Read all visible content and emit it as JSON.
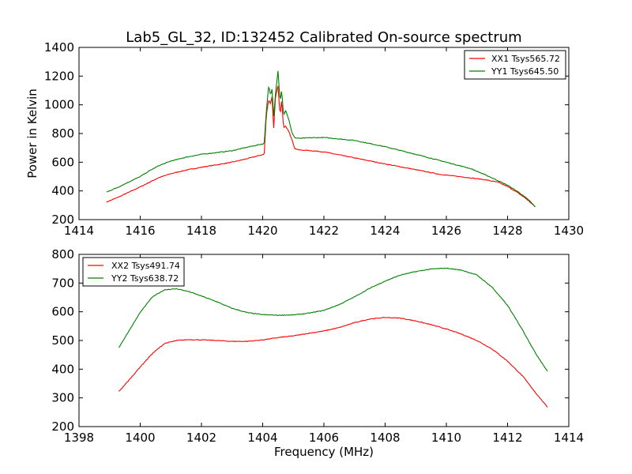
{
  "figure": {
    "title": "Lab5_GL_32, ID:132452 Calibrated On-source spectrum",
    "colors": {
      "red": "#ff0000",
      "green": "#008000"
    }
  },
  "chart_data": [
    {
      "type": "line",
      "title": "Lab5_GL_32, ID:132452 Calibrated On-source spectrum",
      "xlabel": "",
      "ylabel": "Power in Kelvin",
      "xlim": [
        1414,
        1430
      ],
      "ylim": [
        200,
        1400
      ],
      "xticks": [
        1414,
        1416,
        1418,
        1420,
        1422,
        1424,
        1426,
        1428,
        1430
      ],
      "yticks": [
        200,
        400,
        600,
        800,
        1000,
        1200,
        1400
      ],
      "grid": false,
      "legend": "top-right",
      "series": [
        {
          "name": "XX1 Tsys565.72",
          "color": "#ff0000",
          "points": [
            [
              1414.9,
              322
            ],
            [
              1415.3,
              358
            ],
            [
              1415.7,
              398
            ],
            [
              1416.0,
              428
            ],
            [
              1416.3,
              460
            ],
            [
              1416.6,
              492
            ],
            [
              1417.0,
              520
            ],
            [
              1417.5,
              545
            ],
            [
              1418.0,
              565
            ],
            [
              1418.5,
              582
            ],
            [
              1419.0,
              600
            ],
            [
              1419.5,
              625
            ],
            [
              1419.95,
              650
            ],
            [
              1420.05,
              655
            ],
            [
              1420.12,
              930
            ],
            [
              1420.2,
              1040
            ],
            [
              1420.26,
              1000
            ],
            [
              1420.3,
              1070
            ],
            [
              1420.36,
              840
            ],
            [
              1420.42,
              1060
            ],
            [
              1420.5,
              1130
            ],
            [
              1420.57,
              920
            ],
            [
              1420.62,
              1040
            ],
            [
              1420.68,
              840
            ],
            [
              1420.75,
              850
            ],
            [
              1420.85,
              820
            ],
            [
              1420.95,
              760
            ],
            [
              1421.05,
              695
            ],
            [
              1421.2,
              685
            ],
            [
              1421.5,
              682
            ],
            [
              1422.0,
              672
            ],
            [
              1423.0,
              630
            ],
            [
              1424.0,
              588
            ],
            [
              1425.0,
              548
            ],
            [
              1425.8,
              515
            ],
            [
              1426.5,
              498
            ],
            [
              1427.2,
              480
            ],
            [
              1427.7,
              460
            ],
            [
              1428.0,
              430
            ],
            [
              1428.3,
              392
            ],
            [
              1428.6,
              347
            ],
            [
              1428.9,
              290
            ]
          ]
        },
        {
          "name": "YY1 Tsys645.50",
          "color": "#008000",
          "points": [
            [
              1414.9,
              392
            ],
            [
              1415.3,
              428
            ],
            [
              1415.7,
              470
            ],
            [
              1416.0,
              500
            ],
            [
              1416.3,
              540
            ],
            [
              1416.6,
              575
            ],
            [
              1417.0,
              608
            ],
            [
              1417.5,
              635
            ],
            [
              1418.0,
              655
            ],
            [
              1418.5,
              667
            ],
            [
              1419.0,
              680
            ],
            [
              1419.5,
              705
            ],
            [
              1419.95,
              725
            ],
            [
              1420.05,
              730
            ],
            [
              1420.12,
              960
            ],
            [
              1420.2,
              1140
            ],
            [
              1420.26,
              1060
            ],
            [
              1420.3,
              1120
            ],
            [
              1420.36,
              920
            ],
            [
              1420.42,
              1080
            ],
            [
              1420.5,
              1235
            ],
            [
              1420.57,
              1020
            ],
            [
              1420.62,
              1110
            ],
            [
              1420.68,
              930
            ],
            [
              1420.75,
              960
            ],
            [
              1420.85,
              900
            ],
            [
              1420.95,
              810
            ],
            [
              1421.05,
              770
            ],
            [
              1421.2,
              766
            ],
            [
              1421.5,
              770
            ],
            [
              1422.0,
              772
            ],
            [
              1423.0,
              752
            ],
            [
              1424.0,
              708
            ],
            [
              1425.0,
              655
            ],
            [
              1426.0,
              600
            ],
            [
              1426.8,
              555
            ],
            [
              1427.4,
              500
            ],
            [
              1428.0,
              440
            ],
            [
              1428.4,
              386
            ],
            [
              1428.7,
              335
            ],
            [
              1428.9,
              290
            ]
          ]
        }
      ]
    },
    {
      "type": "line",
      "title": "",
      "xlabel": "Frequency (MHz)",
      "ylabel": "",
      "xlim": [
        1398,
        1414
      ],
      "ylim": [
        200,
        800
      ],
      "xticks": [
        1398,
        1400,
        1402,
        1404,
        1406,
        1408,
        1410,
        1412,
        1414
      ],
      "yticks": [
        200,
        300,
        400,
        500,
        600,
        700,
        800
      ],
      "grid": false,
      "legend": "top-left",
      "series": [
        {
          "name": "XX2 Tsys491.74",
          "color": "#ff0000",
          "points": [
            [
              1399.3,
              322
            ],
            [
              1399.6,
              358
            ],
            [
              1400.0,
              408
            ],
            [
              1400.4,
              455
            ],
            [
              1400.8,
              490
            ],
            [
              1401.2,
              500
            ],
            [
              1401.6,
              503
            ],
            [
              1402.0,
              502
            ],
            [
              1402.5,
              500
            ],
            [
              1403.0,
              497
            ],
            [
              1403.5,
              497
            ],
            [
              1404.0,
              502
            ],
            [
              1404.5,
              510
            ],
            [
              1405.0,
              516
            ],
            [
              1405.5,
              525
            ],
            [
              1406.0,
              533
            ],
            [
              1406.5,
              545
            ],
            [
              1407.0,
              562
            ],
            [
              1407.5,
              575
            ],
            [
              1408.0,
              580
            ],
            [
              1408.5,
              578
            ],
            [
              1409.0,
              568
            ],
            [
              1409.5,
              555
            ],
            [
              1410.0,
              540
            ],
            [
              1410.5,
              522
            ],
            [
              1411.0,
              500
            ],
            [
              1411.5,
              470
            ],
            [
              1412.0,
              428
            ],
            [
              1412.5,
              375
            ],
            [
              1412.9,
              320
            ],
            [
              1413.3,
              268
            ]
          ]
        },
        {
          "name": "YY2 Tsys638.72",
          "color": "#008000",
          "points": [
            [
              1399.3,
              475
            ],
            [
              1399.6,
              528
            ],
            [
              1400.0,
              598
            ],
            [
              1400.4,
              652
            ],
            [
              1400.8,
              677
            ],
            [
              1401.2,
              680
            ],
            [
              1401.6,
              670
            ],
            [
              1402.0,
              655
            ],
            [
              1402.5,
              635
            ],
            [
              1403.0,
              612
            ],
            [
              1403.5,
              597
            ],
            [
              1404.0,
              590
            ],
            [
              1404.5,
              588
            ],
            [
              1405.0,
              589
            ],
            [
              1405.5,
              595
            ],
            [
              1406.0,
              605
            ],
            [
              1406.5,
              625
            ],
            [
              1407.0,
              652
            ],
            [
              1407.5,
              682
            ],
            [
              1408.0,
              707
            ],
            [
              1408.5,
              728
            ],
            [
              1409.0,
              740
            ],
            [
              1409.5,
              749
            ],
            [
              1410.0,
              752
            ],
            [
              1410.5,
              745
            ],
            [
              1411.0,
              728
            ],
            [
              1411.5,
              685
            ],
            [
              1412.0,
              622
            ],
            [
              1412.5,
              535
            ],
            [
              1412.9,
              458
            ],
            [
              1413.3,
              393
            ]
          ]
        }
      ]
    }
  ]
}
